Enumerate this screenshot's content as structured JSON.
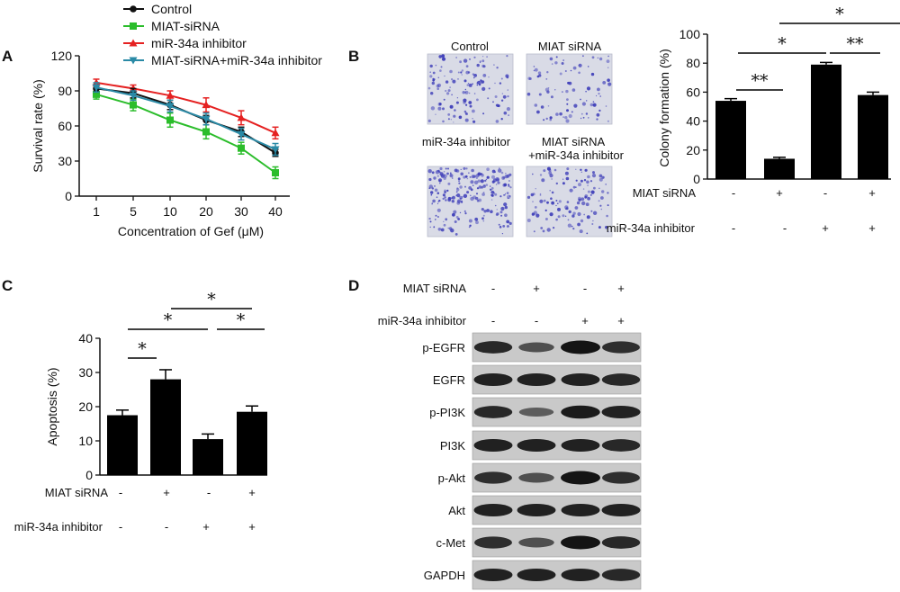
{
  "figure": {
    "panels": {
      "A": "A",
      "B": "B",
      "C": "C",
      "D": "D"
    }
  },
  "colors": {
    "control": "#111111",
    "miat_sirna": "#2bbd2b",
    "mir34a_inhibitor": "#e52121",
    "combo": "#2a8aa6",
    "bar": "#000000",
    "stain": "#3b3bb8"
  },
  "chart_data": [
    {
      "id": "A",
      "type": "line",
      "title": "",
      "xlabel": "Concentration of Gef (μM)",
      "ylabel": "Survival rate (%)",
      "x": [
        "1",
        "5",
        "10",
        "20",
        "30",
        "40"
      ],
      "ylim": [
        0,
        120
      ],
      "yticks": [
        "0",
        "30",
        "60",
        "90",
        "120"
      ],
      "legend_position": "top-left",
      "series": [
        {
          "name": "Control",
          "marker": "circle",
          "values": [
            92,
            88,
            78,
            65,
            55,
            37
          ],
          "err": [
            3,
            4,
            4,
            4,
            4,
            3
          ]
        },
        {
          "name": "MIAT-siRNA",
          "marker": "square",
          "values": [
            87,
            78,
            65,
            55,
            41,
            20
          ],
          "err": [
            4,
            5,
            6,
            6,
            5,
            5
          ]
        },
        {
          "name": "miR-34a inhibitor",
          "marker": "triangle-up",
          "values": [
            97,
            92,
            86,
            78,
            67,
            54
          ],
          "err": [
            3,
            3,
            4,
            6,
            6,
            5
          ]
        },
        {
          "name": "MIAT-siRNA+miR-34a inhibitor",
          "marker": "triangle-down",
          "values": [
            93,
            86,
            77,
            66,
            53,
            40
          ],
          "err": [
            4,
            4,
            5,
            5,
            5,
            5
          ]
        }
      ]
    },
    {
      "id": "B",
      "type": "bar",
      "ylabel": "Colony formation (%)",
      "ylim": [
        0,
        100
      ],
      "yticks": [
        "0",
        "20",
        "40",
        "60",
        "80",
        "100"
      ],
      "values": [
        54,
        14,
        79,
        58
      ],
      "err": [
        1.5,
        1,
        1.5,
        2
      ],
      "conditions": {
        "rows": [
          {
            "label": "MIAT siRNA",
            "marks": [
              "-",
              "+",
              "-",
              "+"
            ]
          },
          {
            "label": "miR-34a inhibitor",
            "marks": [
              "-",
              "-",
              "+",
              "+"
            ]
          }
        ]
      },
      "significance": [
        {
          "from": 0,
          "to": 1,
          "label": "**"
        },
        {
          "from": 0,
          "to": 2,
          "label": "*"
        },
        {
          "from": 2,
          "to": 3,
          "label": "**"
        },
        {
          "from": 1,
          "to": 3,
          "label": "*"
        }
      ]
    },
    {
      "id": "C",
      "type": "bar",
      "ylabel": "Apoptosis (%)",
      "ylim": [
        0,
        40
      ],
      "yticks": [
        "0",
        "10",
        "20",
        "30",
        "40"
      ],
      "values": [
        17.5,
        28,
        10.5,
        18.5
      ],
      "err": [
        1.5,
        2.8,
        1.5,
        1.7
      ],
      "conditions": {
        "rows": [
          {
            "label": "MIAT siRNA",
            "marks": [
              "-",
              "+",
              "-",
              "+"
            ]
          },
          {
            "label": "miR-34a inhibitor",
            "marks": [
              "-",
              "-",
              "+",
              "+"
            ]
          }
        ]
      },
      "significance": [
        {
          "from": 0,
          "to": 1,
          "label": "*"
        },
        {
          "from": 0,
          "to": 2,
          "label": "*"
        },
        {
          "from": 2,
          "to": 3,
          "label": "*"
        },
        {
          "from": 1,
          "to": 3,
          "label": "*"
        }
      ]
    }
  ],
  "colony_images": [
    {
      "label": "Control",
      "density": 0.5
    },
    {
      "label": "MIAT siRNA",
      "density": 0.25
    },
    {
      "label": "miR-34a inhibitor",
      "density": 0.95
    },
    {
      "label_line1": "MIAT siRNA",
      "label_line2": "+miR-34a inhibitor",
      "density": 0.45
    }
  ],
  "western": {
    "conditions": {
      "rows": [
        {
          "label": "MIAT siRNA",
          "marks": [
            "-",
            "+",
            "-",
            "+"
          ]
        },
        {
          "label": "miR-34a inhibitor",
          "marks": [
            "-",
            "-",
            "+",
            "+"
          ]
        }
      ]
    },
    "blots": [
      {
        "label": "p-EGFR",
        "intensity": [
          0.85,
          0.55,
          1.0,
          0.8
        ]
      },
      {
        "label": "EGFR",
        "intensity": [
          0.9,
          0.9,
          0.9,
          0.85
        ]
      },
      {
        "label": "p-PI3K",
        "intensity": [
          0.85,
          0.45,
          0.95,
          0.9
        ]
      },
      {
        "label": "PI3K",
        "intensity": [
          0.9,
          0.9,
          0.9,
          0.85
        ]
      },
      {
        "label": "p-Akt",
        "intensity": [
          0.8,
          0.55,
          1.0,
          0.8
        ]
      },
      {
        "label": "Akt",
        "intensity": [
          0.9,
          0.9,
          0.9,
          0.9
        ]
      },
      {
        "label": "c-Met",
        "intensity": [
          0.8,
          0.55,
          1.0,
          0.85
        ]
      },
      {
        "label": "GAPDH",
        "intensity": [
          0.9,
          0.9,
          0.9,
          0.85
        ]
      }
    ]
  }
}
